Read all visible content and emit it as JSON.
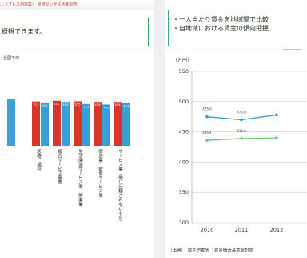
{
  "left": {
    "header": "…（プレス用語集） 経済センサス活動調査",
    "callout_text": "概観できます。",
    "legend_label": "全国平均"
  },
  "right": {
    "callout_lines": [
      "・一人当たり賃金を地域間で比較",
      "・自地域における賃金の傾向把握"
    ],
    "source": "［出典］　厚生労働省「賃金構造基本統計調"
  },
  "colors": {
    "bar_red": "#d9362b",
    "bar_blue": "#3a9ed8",
    "line_blue": "#2f9fc9",
    "line_green": "#6fc67a",
    "callout_border": "#39a86b"
  },
  "chart_data": [
    {
      "type": "bar",
      "categories": [
        "",
        "医療，福祉",
        "複合サービス事業",
        "生活関連サービス業，娯楽業",
        "宿泊業，飲食サービス業",
        "サービス業（他に分類されないもの）"
      ],
      "series": [
        {
          "values": [
            null,
            50.3,
            51.1,
            50.5,
            49.8,
            49.8
          ],
          "value_labels": [
            "",
            "50.3",
            "51.1",
            "50.5",
            "49.8",
            "49.8"
          ]
        },
        {
          "name": "全国平均",
          "values": [
            53.0,
            49.2,
            49.8,
            47.5,
            46.9,
            48.6
          ],
          "value_labels": [
            "",
            "49.2",
            "49.8",
            "47.5",
            "46.9",
            "48.6"
          ]
        }
      ]
    },
    {
      "type": "line",
      "ylabel": "（万円）",
      "ylim": [
        300,
        550
      ],
      "yticks": [
        300,
        350,
        400,
        450,
        500,
        550
      ],
      "x": [
        "2010",
        "2011",
        "2012"
      ],
      "series": [
        {
          "values": [
            475.0,
            470.0,
            478.0
          ],
          "value_labels": [
            "475.0",
            "470.0",
            ""
          ]
        },
        {
          "values": [
            436.0,
            439.0,
            440.0
          ],
          "value_labels": [
            "436.4",
            "438.8",
            ""
          ]
        }
      ]
    }
  ]
}
